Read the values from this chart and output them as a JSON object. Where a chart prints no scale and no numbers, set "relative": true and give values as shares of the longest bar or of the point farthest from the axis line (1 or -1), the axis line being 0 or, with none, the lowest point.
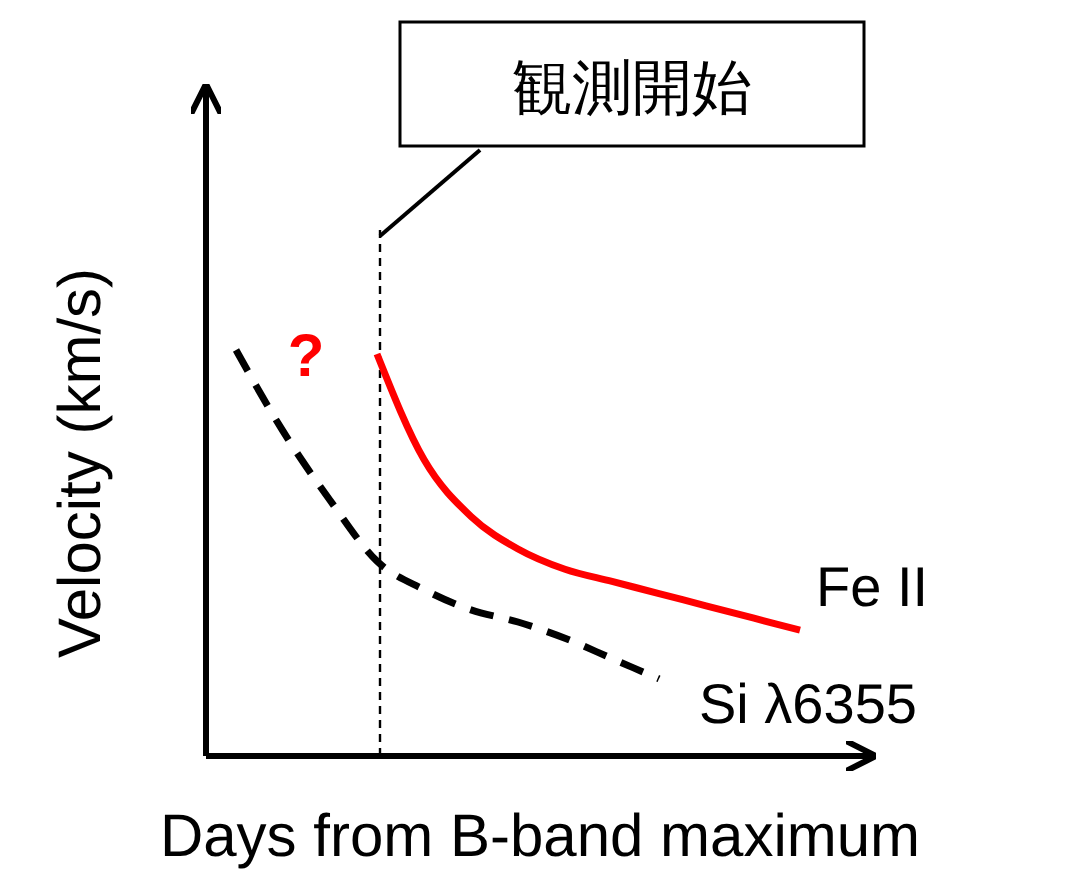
{
  "chart_data": {
    "type": "line",
    "relative": true,
    "xlabel": "Days from B-band maximum",
    "ylabel": "Velocity (km/s)",
    "categories": [
      null,
      null,
      null,
      null,
      null,
      null,
      null,
      null,
      null,
      null,
      null,
      null,
      null
    ],
    "legend": false,
    "marker": "none",
    "series": [
      {
        "name": "Fe II",
        "color": "#ff0000",
        "line_style": "solid",
        "values": [
          null,
          null,
          null,
          0.99,
          0.73,
          0.59,
          0.51,
          0.46,
          0.43,
          0.4,
          0.37,
          0.34,
          0.31
        ]
      },
      {
        "name": "Si λ6355",
        "color": "#000000",
        "line_style": "dashed",
        "values": [
          1.0,
          0.8,
          0.63,
          0.48,
          0.41,
          0.36,
          0.33,
          0.29,
          0.24,
          0.19,
          null,
          null,
          null
        ]
      }
    ],
    "annotations": [
      "観測開始",
      "?"
    ]
  }
}
